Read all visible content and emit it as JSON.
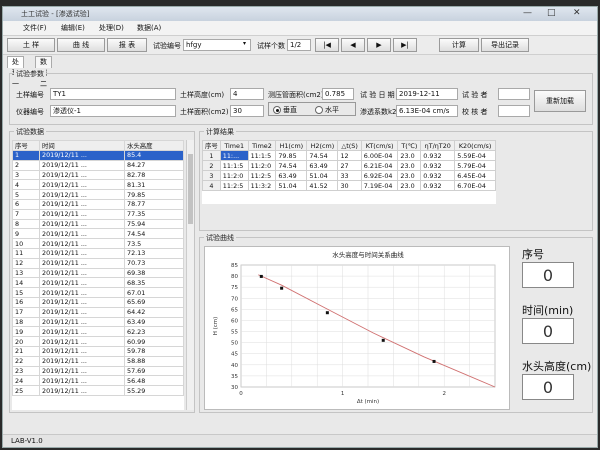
{
  "window": {
    "title": "土工试验 - [渗透试验]",
    "controls": {
      "minimize": "—",
      "maximize": "□",
      "close": "✕"
    }
  },
  "menu": [
    "文件(F)",
    "编辑(E)",
    "处理(D)",
    "数据(A)"
  ],
  "toolbar": {
    "btn_open": "土 样",
    "btn_curve": "曲 线",
    "btn_report": "报 表",
    "sample_no_label": "试验编号",
    "sample_no_value": "hfgy",
    "sample_count_label": "试样个数",
    "sample_count_value": "1/2",
    "nav_first": "|◀",
    "nav_prev": "◀",
    "nav_next": "▶",
    "nav_last": "▶|",
    "btn_compute": "计算",
    "btn_export": "导出记录"
  },
  "tabs": [
    "处理一",
    "数据二"
  ],
  "params": {
    "group_title": "试验参数",
    "sample_id_label": "土样编号",
    "sample_id_value": "TY1",
    "device_id_label": "仪器编号",
    "device_id_value": "渗透仪-1",
    "height_label": "土样高度(cm)",
    "height_value": "4",
    "area_label": "土样面积(cm2)",
    "area_value": "30",
    "tube_area_label": "测压管面积(cm2)",
    "tube_area_value": "0.785",
    "direction_vertical": "垂直",
    "direction_horizontal": "水平",
    "date_label": "试 验 日 期",
    "date_value": "2019-12-11",
    "k20_label": "渗透系数k20",
    "k20_value": "6.13E-04 cm/s",
    "tester_label": "试 验 者",
    "tester_value": "",
    "checker_label": "校 核 者",
    "checker_value": "",
    "btn_reload": "重新加载"
  },
  "data_table": {
    "group_title": "试验数据",
    "headers": [
      "序号",
      "时间",
      "水头高度"
    ],
    "rows": [
      [
        "1",
        "2019/12/11 ...",
        "85.4"
      ],
      [
        "2",
        "2019/12/11 ...",
        "84.27"
      ],
      [
        "3",
        "2019/12/11 ...",
        "82.78"
      ],
      [
        "4",
        "2019/12/11 ...",
        "81.31"
      ],
      [
        "5",
        "2019/12/11 ...",
        "79.85"
      ],
      [
        "6",
        "2019/12/11 ...",
        "78.77"
      ],
      [
        "7",
        "2019/12/11 ...",
        "77.35"
      ],
      [
        "8",
        "2019/12/11 ...",
        "75.94"
      ],
      [
        "9",
        "2019/12/11 ...",
        "74.54"
      ],
      [
        "10",
        "2019/12/11 ...",
        "73.5"
      ],
      [
        "11",
        "2019/12/11 ...",
        "72.13"
      ],
      [
        "12",
        "2019/12/11 ...",
        "70.73"
      ],
      [
        "13",
        "2019/12/11 ...",
        "69.38"
      ],
      [
        "14",
        "2019/12/11 ...",
        "68.35"
      ],
      [
        "15",
        "2019/12/11 ...",
        "67.01"
      ],
      [
        "16",
        "2019/12/11 ...",
        "65.69"
      ],
      [
        "17",
        "2019/12/11 ...",
        "64.42"
      ],
      [
        "18",
        "2019/12/11 ...",
        "63.49"
      ],
      [
        "19",
        "2019/12/11 ...",
        "62.23"
      ],
      [
        "20",
        "2019/12/11 ...",
        "60.99"
      ],
      [
        "21",
        "2019/12/11 ...",
        "59.78"
      ],
      [
        "22",
        "2019/12/11 ...",
        "58.88"
      ],
      [
        "23",
        "2019/12/11 ...",
        "57.69"
      ],
      [
        "24",
        "2019/12/11 ...",
        "56.48"
      ],
      [
        "25",
        "2019/12/11 ...",
        "55.29"
      ]
    ]
  },
  "results": {
    "group_title": "计算结果",
    "row_header": "序号",
    "headers": [
      "Time1",
      "Time2",
      "H1(cm)",
      "H2(cm)",
      "△t(S)",
      "KT(cm/s)",
      "T(℃)",
      "ηT/ηT20",
      "K20(cm/s)"
    ],
    "rows": [
      [
        "11:...",
        "11:1:5",
        "79.85",
        "74.54",
        "12",
        "6.00E-04",
        "23.0",
        "0.932",
        "5.59E-04"
      ],
      [
        "11:1:5",
        "11:2:0",
        "74.54",
        "63.49",
        "27",
        "6.21E-04",
        "23.0",
        "0.932",
        "5.79E-04"
      ],
      [
        "11:2:0",
        "11:2:5",
        "63.49",
        "51.04",
        "33",
        "6.92E-04",
        "23.0",
        "0.932",
        "6.45E-04"
      ],
      [
        "11:2:5",
        "11:3:2",
        "51.04",
        "41.52",
        "30",
        "7.19E-04",
        "23.0",
        "0.932",
        "6.70E-04"
      ]
    ]
  },
  "curve": {
    "group_title": "试验曲线"
  },
  "chart_data": {
    "type": "line",
    "title": "水头高度与时间关系曲线",
    "xlabel": "Δt (min)",
    "ylabel": "H (cm)",
    "xlim": [
      0,
      2.5
    ],
    "ylim": [
      30,
      85
    ],
    "xticks": [
      0,
      1,
      2
    ],
    "yticks": [
      30,
      35,
      40,
      45,
      50,
      55,
      60,
      65,
      70,
      75,
      80,
      85
    ],
    "grid": true,
    "line_color": "#d07070",
    "line_x": [
      0.17,
      0.4,
      0.85,
      1.3,
      1.8,
      2.55
    ],
    "line_y": [
      80.6,
      75.9,
      65.1,
      54.4,
      43.6,
      30
    ],
    "points_x": [
      0.2,
      0.4,
      0.85,
      1.4,
      1.9
    ],
    "points_y": [
      79.85,
      74.54,
      63.49,
      51.04,
      41.52
    ]
  },
  "side": {
    "seq_label": "序号",
    "seq_value": "0",
    "time_label": "时间(min)",
    "time_value": "0",
    "head_label": "水头高度(cm)",
    "head_value": "0"
  },
  "status": {
    "version": "LAB-V1.0"
  }
}
